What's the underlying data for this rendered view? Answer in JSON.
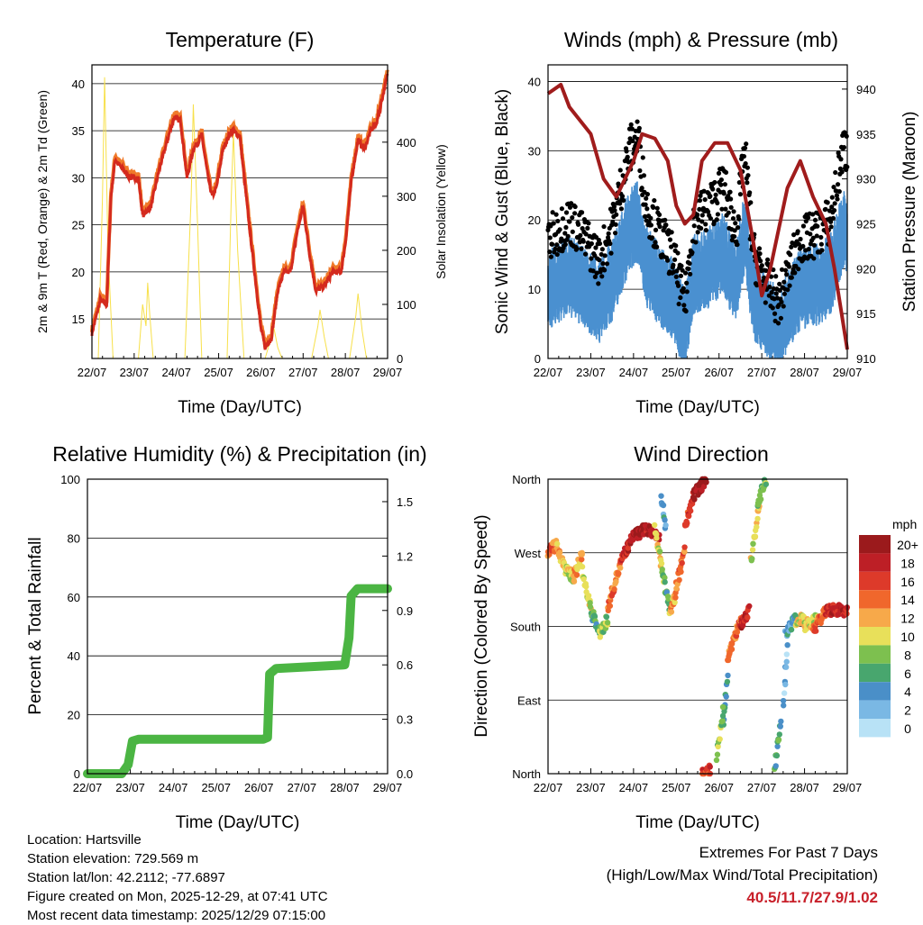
{
  "chart_data": [
    {
      "type": "line",
      "title": "Temperature (F)",
      "xlabel": "Time (Day/UTC)",
      "ylabel": "2m & 9m T (Red, Orange) & 2m Td (Green)",
      "y2label": "Solar Insolation (Yellow)",
      "xticks": [
        "22/07",
        "23/07",
        "24/07",
        "25/07",
        "26/07",
        "27/07",
        "28/07",
        "29/07"
      ],
      "ylim": [
        10.8,
        42
      ],
      "yticks": [
        15,
        20,
        25,
        30,
        35,
        40
      ],
      "y2lim": [
        0,
        543
      ],
      "y2ticks": [
        0,
        100,
        200,
        300,
        400,
        500
      ],
      "series": [
        {
          "name": "2m T",
          "color": "#d42a1e",
          "x": [
            0,
            0.2,
            0.35,
            0.45,
            0.55,
            0.7,
            0.9,
            1.1,
            1.2,
            1.4,
            1.6,
            1.85,
            1.95,
            2.1,
            2.25,
            2.4,
            2.6,
            2.75,
            2.85,
            2.95,
            3.1,
            3.3,
            3.5,
            3.7,
            3.85,
            4.0,
            4.1,
            4.25,
            4.4,
            4.55,
            4.7,
            4.85,
            5.0,
            5.15,
            5.3,
            5.5,
            5.7,
            5.9,
            6.0,
            6.15,
            6.3,
            6.45,
            6.6,
            6.75,
            6.85,
            7.0
          ],
          "y": [
            13.5,
            17,
            16.5,
            28,
            32,
            31,
            30,
            30,
            26,
            27,
            31,
            35,
            36.5,
            36,
            30,
            33,
            34.5,
            30,
            28,
            29,
            33,
            35,
            34.5,
            26,
            20,
            14,
            12,
            13,
            18,
            20,
            20,
            24,
            27,
            22,
            18,
            18.5,
            20,
            20,
            23,
            30,
            34,
            33,
            35,
            36,
            38,
            41
          ]
        },
        {
          "name": "Solar Insolation",
          "color": "#f7e04a",
          "x": [
            0,
            0.15,
            0.25,
            0.3,
            0.38,
            0.5,
            1.1,
            1.2,
            1.28,
            1.32,
            1.37,
            1.45,
            2.2,
            2.35,
            2.4,
            2.5,
            2.6,
            3.2,
            3.3,
            3.35,
            3.45,
            3.6,
            4.1,
            4.25,
            4.3,
            4.4,
            4.5,
            5.2,
            5.35,
            5.4,
            5.5,
            5.6,
            6.1,
            6.25,
            6.3,
            6.4,
            6.5,
            7.0
          ],
          "y": [
            0,
            0,
            300,
            520,
            200,
            0,
            0,
            100,
            60,
            140,
            80,
            0,
            0,
            300,
            470,
            250,
            0,
            0,
            300,
            420,
            200,
            0,
            0,
            40,
            60,
            20,
            0,
            0,
            60,
            90,
            40,
            0,
            0,
            80,
            120,
            50,
            0,
            0
          ]
        }
      ]
    },
    {
      "type": "scatter",
      "title": "Winds (mph) & Pressure (mb)",
      "xlabel": "Time (Day/UTC)",
      "ylabel": "Sonic Wind & Gust (Blue, Black)",
      "y2label": "Station Pressure (Maroon)",
      "xticks": [
        "22/07",
        "23/07",
        "24/07",
        "25/07",
        "26/07",
        "27/07",
        "28/07",
        "29/07"
      ],
      "ylim": [
        0,
        42.4
      ],
      "yticks": [
        0,
        10,
        20,
        30,
        40
      ],
      "y2lim": [
        910,
        942.7
      ],
      "y2ticks": [
        910,
        915,
        920,
        925,
        930,
        935,
        940
      ],
      "gust": {
        "color": "#000000",
        "x": [
          0,
          0.5,
          0.9,
          1.2,
          1.5,
          1.9,
          2.1,
          2.3,
          2.6,
          2.9,
          3.2,
          3.4,
          3.8,
          4.1,
          4.4,
          4.6,
          4.8,
          5.2,
          5.4,
          5.6,
          5.9,
          6.3,
          6.6,
          6.9,
          7.0
        ],
        "y": [
          17,
          20,
          17,
          14,
          19,
          30,
          32,
          22,
          18,
          15,
          8,
          20,
          22,
          25,
          18,
          30,
          15,
          10,
          8,
          12,
          17,
          18,
          20,
          30,
          30
        ]
      },
      "wind_ratio": 0.65,
      "wind_color": "#4a90d0",
      "pressure": {
        "color": "#a01c1c",
        "x": [
          0,
          0.3,
          0.5,
          1,
          1.3,
          1.6,
          2,
          2.2,
          2.5,
          2.8,
          3.0,
          3.2,
          3.4,
          3.6,
          3.9,
          4.2,
          4.5,
          4.8,
          5.0,
          5.2,
          5.6,
          5.9,
          6.2,
          6.5,
          6.7,
          6.9,
          7.0
        ],
        "y": [
          939.5,
          940.5,
          938,
          935,
          930,
          928,
          932,
          935,
          934.5,
          932,
          927,
          925,
          926,
          932,
          934,
          934,
          931,
          923,
          917,
          920,
          929,
          932,
          928,
          925,
          920,
          914,
          911
        ]
      }
    },
    {
      "type": "line",
      "title": "Relative Humidity (%) & Precipitation (in)",
      "xlabel": "Time (Day/UTC)",
      "ylabel": "Percent & Total Rainfall",
      "xticks": [
        "22/07",
        "23/07",
        "24/07",
        "25/07",
        "26/07",
        "27/07",
        "28/07",
        "29/07"
      ],
      "ylim": [
        0,
        100
      ],
      "yticks": [
        0,
        20,
        40,
        60,
        80,
        100
      ],
      "y2lim": [
        0,
        1.624
      ],
      "y2ticks": [
        "0.0",
        "0.3",
        "0.6",
        "0.9",
        "1.2",
        "1.5"
      ],
      "series": [
        {
          "name": "Total Precipitation",
          "color": "#4bb543",
          "x": [
            0,
            0.8,
            0.95,
            1.05,
            1.2,
            4.1,
            4.2,
            4.25,
            4.4,
            6.0,
            6.1,
            6.15,
            6.3,
            7.0
          ],
          "y": [
            0,
            0,
            0.05,
            0.18,
            0.19,
            0.19,
            0.2,
            0.55,
            0.58,
            0.6,
            0.75,
            0.98,
            1.02,
            1.02
          ]
        }
      ]
    },
    {
      "type": "scatter",
      "title": "Wind Direction",
      "xlabel": "Time (Day/UTC)",
      "ylabel": "Direction (Colored By Speed)",
      "xticks": [
        "22/07",
        "23/07",
        "24/07",
        "25/07",
        "26/07",
        "27/07",
        "28/07",
        "29/07"
      ],
      "yticks": [
        "North",
        "East",
        "South",
        "West",
        "North"
      ],
      "ylim": [
        0,
        360
      ],
      "segments": [
        [
          0,
          270,
          0.2,
          280,
          14
        ],
        [
          0.2,
          280,
          0.4,
          250,
          12
        ],
        [
          0.4,
          250,
          0.6,
          240,
          10
        ],
        [
          0.6,
          240,
          0.8,
          270,
          12
        ],
        [
          0.8,
          250,
          1.0,
          200,
          10
        ],
        [
          1.0,
          200,
          1.2,
          170,
          6
        ],
        [
          1.2,
          170,
          1.4,
          190,
          8
        ],
        [
          1.4,
          200,
          1.7,
          260,
          14
        ],
        [
          1.7,
          260,
          2.0,
          290,
          18
        ],
        [
          2.0,
          290,
          2.3,
          300,
          20
        ],
        [
          2.3,
          300,
          2.6,
          290,
          18
        ],
        [
          2.5,
          300,
          2.7,
          240,
          10
        ],
        [
          2.7,
          240,
          2.85,
          200,
          6
        ],
        [
          2.85,
          200,
          3.0,
          220,
          12
        ],
        [
          3.0,
          230,
          3.2,
          270,
          14
        ],
        [
          3.2,
          300,
          3.4,
          340,
          16
        ],
        [
          3.4,
          340,
          3.7,
          360,
          20
        ],
        [
          2.65,
          340,
          2.75,
          300,
          4
        ],
        [
          3.6,
          0,
          3.8,
          5,
          16
        ],
        [
          4.1,
          60,
          4.2,
          120,
          6
        ],
        [
          3.95,
          20,
          4.1,
          80,
          8
        ],
        [
          4.2,
          140,
          4.5,
          190,
          14
        ],
        [
          4.5,
          180,
          4.7,
          200,
          18
        ],
        [
          4.75,
          260,
          4.95,
          330,
          10
        ],
        [
          4.9,
          330,
          5.1,
          360,
          8
        ],
        [
          5.3,
          5,
          5.45,
          60,
          6
        ],
        [
          5.5,
          80,
          5.6,
          160,
          2
        ],
        [
          5.55,
          170,
          5.8,
          190,
          4
        ],
        [
          5.8,
          185,
          6.0,
          190,
          10
        ],
        [
          6.0,
          180,
          6.3,
          190,
          10
        ],
        [
          6.2,
          175,
          6.5,
          200,
          14
        ],
        [
          6.5,
          200,
          7.0,
          200,
          18
        ]
      ],
      "colorbar": {
        "title": "mph",
        "labels": [
          "20+",
          "18",
          "16",
          "14",
          "12",
          "10",
          "8",
          "6",
          "4",
          "2",
          "0"
        ],
        "colors": [
          "#9b1a1c",
          "#bd1f26",
          "#dd3a2a",
          "#f0672c",
          "#f7a94a",
          "#e8e05a",
          "#7dc04f",
          "#48a66e",
          "#4a8fc8",
          "#7ab8e4",
          "#b8e2f6"
        ]
      }
    }
  ],
  "info": {
    "location": "Location: Hartsville",
    "elevation": "Station elevation: 729.569 m",
    "latlon": "Station lat/lon: 42.2112; -77.6897",
    "created": "Figure created on Mon, 2025-12-29, at 07:41 UTC",
    "timestamp": "Most recent data timestamp: 2025/12/29 07:15:00"
  },
  "extremes": {
    "title": "Extremes For Past 7 Days",
    "subtitle": "(High/Low/Max Wind/Total Precipitation)",
    "values": "40.5/11.7/27.9/1.02"
  }
}
